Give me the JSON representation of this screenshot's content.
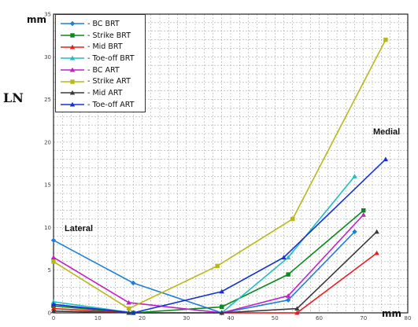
{
  "labels": {
    "y_unit": "mm",
    "x_unit": "mm",
    "y_name": "LN",
    "lateral": "Lateral",
    "medial": "Medial"
  },
  "chart_data": {
    "type": "line",
    "title": "",
    "xlabel": "mm",
    "ylabel": "LN",
    "xlim": [
      0,
      80
    ],
    "ylim": [
      0,
      35
    ],
    "xticks": [
      0,
      10,
      20,
      30,
      40,
      50,
      60,
      70,
      80
    ],
    "yticks": [
      0,
      5,
      10,
      15,
      20,
      25,
      30,
      35
    ],
    "grid": true,
    "legend_position": "top-left",
    "series": [
      {
        "name": "BC BRT",
        "color": "#1e7fd6",
        "marker": "diamond",
        "x": [
          0,
          18,
          38,
          53,
          68
        ],
        "y": [
          8.5,
          3.5,
          0,
          1.5,
          9.5
        ]
      },
      {
        "name": "Strike BRT",
        "color": "#0a8a1c",
        "marker": "square",
        "x": [
          0,
          18,
          38,
          53,
          70
        ],
        "y": [
          0.8,
          0,
          0.7,
          4.5,
          12
        ]
      },
      {
        "name": "Mid BRT",
        "color": "#e81e1e",
        "marker": "triangle",
        "x": [
          0,
          18,
          38,
          55,
          73
        ],
        "y": [
          0.5,
          0,
          0,
          0,
          7
        ]
      },
      {
        "name": "Toe-off BRT",
        "color": "#1fbec2",
        "marker": "triangle",
        "x": [
          0,
          18,
          38,
          53,
          68
        ],
        "y": [
          1.3,
          0,
          0,
          6.5,
          16
        ]
      },
      {
        "name": "BC ART",
        "color": "#c21fc8",
        "marker": "triangle",
        "x": [
          0,
          17,
          38,
          53,
          70
        ],
        "y": [
          6.5,
          1.2,
          0,
          2,
          11.5
        ]
      },
      {
        "name": "Strike ART",
        "color": "#b8b819",
        "marker": "square",
        "x": [
          0,
          17,
          37,
          54,
          75
        ],
        "y": [
          6,
          0.5,
          5.5,
          11,
          32
        ]
      },
      {
        "name": "Mid ART",
        "color": "#3a3a3a",
        "marker": "triangle",
        "x": [
          0,
          17,
          38,
          55,
          73
        ],
        "y": [
          0.2,
          0,
          0,
          0.5,
          9.5
        ]
      },
      {
        "name": "Toe-off ART",
        "color": "#1530d6",
        "marker": "triangle",
        "x": [
          0,
          18,
          38,
          52,
          75
        ],
        "y": [
          1,
          0,
          2.5,
          6.5,
          18
        ]
      }
    ]
  }
}
